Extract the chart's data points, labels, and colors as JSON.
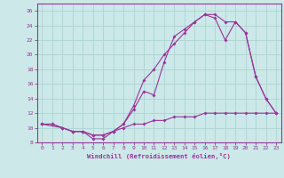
{
  "xlabel": "Windchill (Refroidissement éolien,°C)",
  "bg_color": "#cce8e8",
  "grid_color": "#aad4d4",
  "line_color": "#993399",
  "xlim": [
    -0.5,
    23.5
  ],
  "ylim": [
    8,
    27
  ],
  "xticks": [
    0,
    1,
    2,
    3,
    4,
    5,
    6,
    7,
    8,
    9,
    10,
    11,
    12,
    13,
    14,
    15,
    16,
    17,
    18,
    19,
    20,
    21,
    22,
    23
  ],
  "yticks": [
    8,
    10,
    12,
    14,
    16,
    18,
    20,
    22,
    24,
    26
  ],
  "line1_x": [
    0,
    1,
    2,
    3,
    4,
    5,
    6,
    7,
    8,
    9,
    10,
    11,
    12,
    13,
    14,
    15,
    16,
    17,
    18,
    19,
    20,
    21,
    22,
    23
  ],
  "line1_y": [
    10.5,
    10.5,
    10.0,
    9.5,
    9.5,
    8.5,
    8.5,
    9.5,
    10.5,
    12.5,
    15.0,
    14.5,
    19.0,
    22.5,
    23.5,
    24.5,
    25.5,
    25.5,
    24.5,
    24.5,
    23.0,
    17.0,
    14.0,
    12.0
  ],
  "line2_x": [
    0,
    2,
    3,
    4,
    5,
    6,
    7,
    8,
    9,
    10,
    11,
    12,
    13,
    14,
    15,
    16,
    17,
    18,
    19,
    20,
    21,
    22,
    23
  ],
  "line2_y": [
    10.5,
    10.0,
    9.5,
    9.5,
    9.0,
    9.0,
    9.5,
    10.5,
    13.0,
    16.5,
    18.0,
    20.0,
    21.5,
    23.0,
    24.5,
    25.5,
    25.0,
    22.0,
    24.5,
    23.0,
    17.0,
    14.0,
    12.0
  ],
  "line3_x": [
    0,
    1,
    2,
    3,
    4,
    5,
    6,
    7,
    8,
    9,
    10,
    11,
    12,
    13,
    14,
    15,
    16,
    17,
    18,
    19,
    20,
    21,
    22,
    23
  ],
  "line3_y": [
    10.5,
    10.5,
    10.0,
    9.5,
    9.5,
    9.0,
    9.0,
    9.5,
    10.0,
    10.5,
    10.5,
    11.0,
    11.0,
    11.5,
    11.5,
    11.5,
    12.0,
    12.0,
    12.0,
    12.0,
    12.0,
    12.0,
    12.0,
    12.0
  ]
}
